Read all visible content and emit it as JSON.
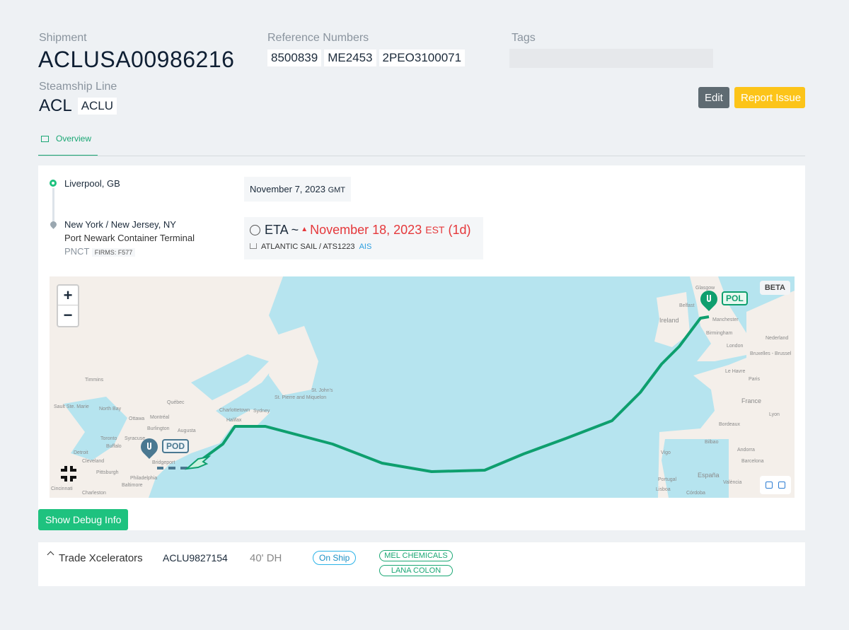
{
  "header": {
    "shipment_label": "Shipment",
    "shipment_id": "ACLUSA00986216",
    "reference_label": "Reference Numbers",
    "references": [
      "8500839",
      "ME2453",
      "2PEO3100071"
    ],
    "tags_label": "Tags",
    "line_label": "Steamship Line",
    "line_name": "ACL",
    "line_code": "ACLU",
    "edit_label": "Edit",
    "report_label": "Report Issue"
  },
  "tabs": [
    {
      "label": "Overview",
      "icon": "map-icon",
      "active": true
    }
  ],
  "route": {
    "origin": {
      "name": "Liverpool, GB",
      "date": "November 7, 2023",
      "tz": "GMT"
    },
    "destination": {
      "name": "New York / New Jersey, NY",
      "terminal": "Port Newark Container Terminal",
      "code": "PNCT",
      "firms": "FIRMS: F577"
    },
    "eta": {
      "prefix": "ETA ~",
      "date": "November 18, 2023",
      "tz": "EST",
      "delay": "(1d)",
      "vessel": "ATLANTIC SAIL / ATS1223",
      "source": "AIS"
    }
  },
  "map": {
    "zoom_in": "+",
    "zoom_out": "−",
    "beta": "BETA",
    "pol": "POL",
    "pod": "POD",
    "labels": [
      "Timmins",
      "Sault Ste. Marie",
      "North Bay",
      "Québec",
      "Ottawa",
      "Montréal",
      "Burlington",
      "Augusta",
      "Toronto",
      "Buffalo",
      "Syracuse",
      "Detroit",
      "Cleveland",
      "Pittsburgh",
      "Philadelphia",
      "Baltimore",
      "Charleston",
      "Cincinnati",
      "Bridgeport",
      "Halifax",
      "Charlottetown",
      "Sydney",
      "St. Pierre and Miquelon",
      "St. John's",
      "Glasgow",
      "Belfast",
      "Ireland",
      "Manchester",
      "Birmingham",
      "London",
      "Nederland",
      "Bruxelles - Brussel",
      "Le Havre",
      "Paris",
      "France",
      "Lyon",
      "Bordeaux",
      "Bilbao",
      "Andorra",
      "Barcelona",
      "Vigo",
      "Portugal",
      "España",
      "València",
      "Lisboa",
      "Córdoba"
    ],
    "route_color": "#0e9f6e",
    "pod_color": "#4a7891"
  },
  "debug_label": "Show Debug Info",
  "container": {
    "customer": "Trade Xcelerators",
    "number": "ACLU9827154",
    "size": "40' DH",
    "status": "On Ship",
    "tags": [
      "MEL CHEMICALS",
      "LANA COLON"
    ]
  }
}
